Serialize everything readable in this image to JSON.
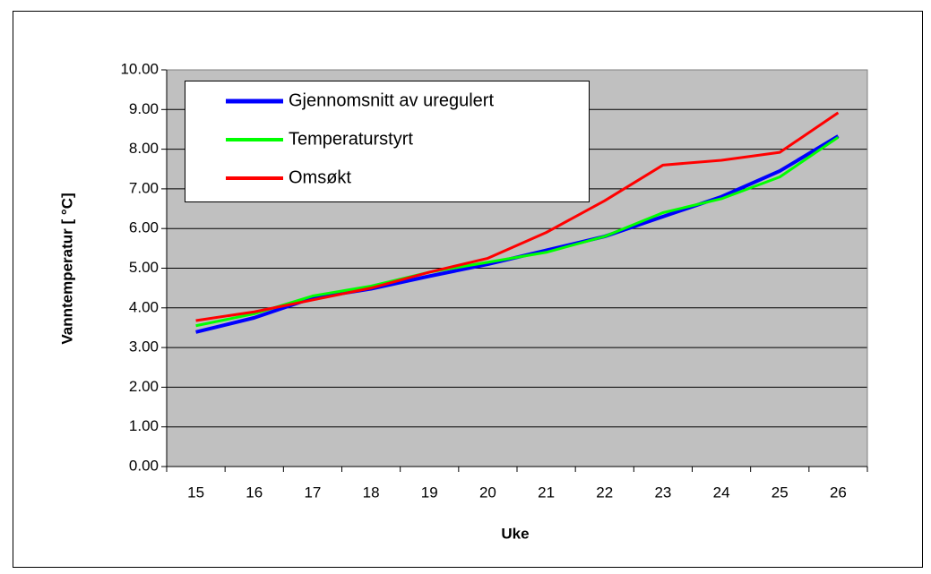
{
  "chart_data": {
    "type": "line",
    "x_label": "Uke",
    "y_label": "Vanntemperatur [  °C]",
    "categories": [
      "15",
      "16",
      "17",
      "18",
      "19",
      "20",
      "21",
      "22",
      "23",
      "24",
      "25",
      "26"
    ],
    "series": [
      {
        "name": "Gjennomsnitt av uregulert",
        "color": "#0000ff",
        "values": [
          3.39,
          3.75,
          4.25,
          4.48,
          4.8,
          5.1,
          5.45,
          5.8,
          6.3,
          6.8,
          7.45,
          8.33
        ]
      },
      {
        "name": "Temperaturstyrt",
        "color": "#00ff00",
        "values": [
          3.55,
          3.85,
          4.3,
          4.55,
          4.9,
          5.15,
          5.4,
          5.8,
          6.4,
          6.75,
          7.3,
          8.3
        ]
      },
      {
        "name": "Omsøkt",
        "color": "#ff0000",
        "values": [
          3.68,
          3.9,
          4.2,
          4.5,
          4.9,
          5.25,
          5.9,
          6.7,
          7.6,
          7.72,
          7.92,
          8.92
        ]
      }
    ],
    "ylim": [
      0,
      10
    ],
    "yticks": [
      {
        "value": 0,
        "label": "0.00"
      },
      {
        "value": 1,
        "label": "1.00"
      },
      {
        "value": 2,
        "label": "2.00"
      },
      {
        "value": 3,
        "label": "3.00"
      },
      {
        "value": 4,
        "label": "4.00"
      },
      {
        "value": 5,
        "label": "5.00"
      },
      {
        "value": 6,
        "label": "6.00"
      },
      {
        "value": 7,
        "label": "7.00"
      },
      {
        "value": 8,
        "label": "8.00"
      },
      {
        "value": 9,
        "label": "9.00"
      },
      {
        "value": 10,
        "label": "10.00"
      }
    ],
    "grid": true,
    "plot_background": "#c0c0c0",
    "legend_position": "upper left"
  }
}
